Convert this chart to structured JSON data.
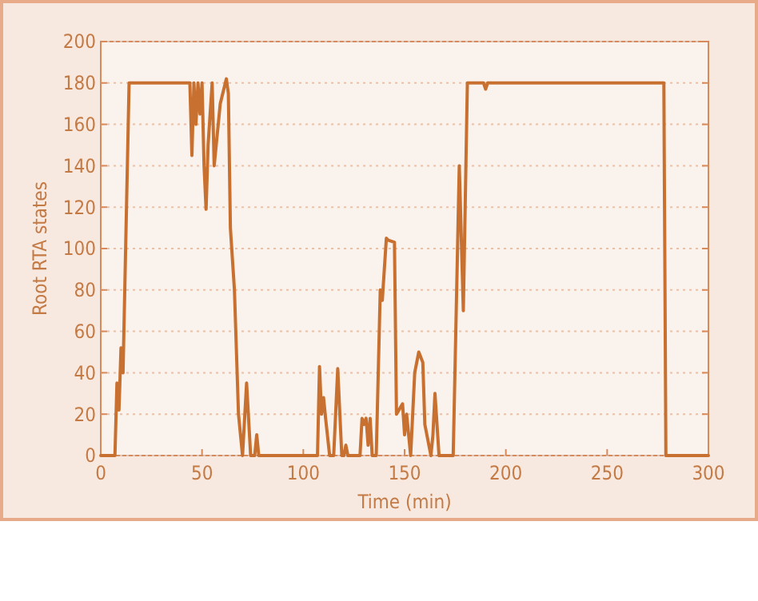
{
  "chart_data": {
    "type": "line",
    "xlabel": "Time (min)",
    "ylabel": "Root RTA states",
    "xlim": [
      0,
      300
    ],
    "xticks": [
      0,
      50,
      100,
      150,
      200,
      250,
      300
    ],
    "ylim": [
      0,
      200
    ],
    "yticks": [
      0,
      20,
      40,
      60,
      80,
      100,
      120,
      140,
      160,
      180,
      200
    ],
    "grid": "y",
    "marker": "none",
    "line_style": "solid",
    "series": [
      {
        "color": "#c8702f",
        "x": [
          0,
          7,
          8,
          9,
          10,
          11,
          14,
          44,
          45,
          46,
          47,
          48,
          49,
          50,
          51,
          52,
          53,
          55,
          56,
          57,
          59,
          61,
          62,
          63,
          64,
          66,
          68,
          70,
          72,
          74,
          76,
          77,
          78,
          79,
          80,
          107,
          108,
          109,
          110,
          111,
          113,
          115,
          117,
          119,
          120,
          121,
          122,
          124,
          128,
          129,
          130,
          131,
          132,
          133,
          134,
          135,
          136,
          138,
          139,
          141,
          142,
          145,
          146,
          149,
          150,
          151,
          153,
          155,
          157,
          159,
          160,
          161,
          162,
          163,
          164,
          165,
          167,
          169,
          172,
          174,
          177,
          179,
          181,
          189,
          190,
          191,
          278,
          279,
          300
        ],
        "values": [
          0,
          0,
          35,
          22,
          52,
          40,
          180,
          180,
          145,
          180,
          160,
          180,
          165,
          180,
          140,
          119,
          150,
          180,
          140,
          150,
          170,
          178,
          182,
          175,
          110,
          80,
          20,
          0,
          35,
          0,
          0,
          10,
          0,
          0,
          0,
          0,
          43,
          20,
          28,
          18,
          0,
          0,
          42,
          0,
          0,
          5,
          0,
          0,
          0,
          18,
          15,
          18,
          5,
          18,
          0,
          0,
          0,
          80,
          75,
          105,
          104,
          103,
          20,
          25,
          10,
          20,
          0,
          40,
          50,
          45,
          15,
          10,
          5,
          0,
          10,
          30,
          0,
          0,
          0,
          0,
          140,
          70,
          180,
          180,
          177,
          180,
          180,
          0,
          0
        ]
      }
    ]
  }
}
